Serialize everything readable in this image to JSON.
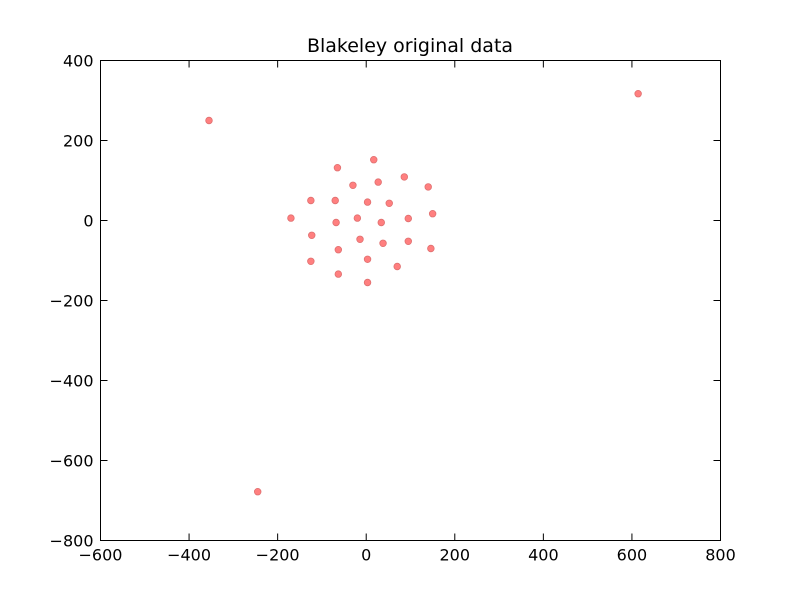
{
  "chart_data": {
    "type": "scatter",
    "title": "Blakeley original data",
    "xlabel": "",
    "ylabel": "",
    "xlim": [
      -600,
      800
    ],
    "ylim": [
      -800,
      400
    ],
    "x_ticks": [
      -600,
      -400,
      -200,
      0,
      200,
      400,
      600,
      800
    ],
    "y_ticks": [
      -800,
      -600,
      -400,
      -200,
      0,
      200,
      400
    ],
    "x_tick_labels": [
      "−600",
      "−400",
      "−200",
      "0",
      "200",
      "400",
      "600",
      "800"
    ],
    "y_tick_labels": [
      "−800",
      "−600",
      "−400",
      "−200",
      "0",
      "200",
      "400"
    ],
    "grid": false,
    "marker_color": "#ff7f7f",
    "marker_edge_color": "#e07070",
    "series": [
      {
        "points": [
          [
            -355,
            250
          ],
          [
            614,
            317
          ],
          [
            -245,
            -678
          ],
          [
            -65,
            132
          ],
          [
            17,
            152
          ],
          [
            -30,
            88
          ],
          [
            27,
            96
          ],
          [
            86,
            109
          ],
          [
            140,
            84
          ],
          [
            -125,
            50
          ],
          [
            -70,
            50
          ],
          [
            3,
            46
          ],
          [
            52,
            43
          ],
          [
            -170,
            6
          ],
          [
            -20,
            6
          ],
          [
            -68,
            -5
          ],
          [
            34,
            -5
          ],
          [
            95,
            5
          ],
          [
            150,
            17
          ],
          [
            -123,
            -37
          ],
          [
            -14,
            -47
          ],
          [
            38,
            -57
          ],
          [
            95,
            -52
          ],
          [
            146,
            -70
          ],
          [
            -63,
            -73
          ],
          [
            -125,
            -102
          ],
          [
            3,
            -97
          ],
          [
            70,
            -115
          ],
          [
            -63,
            -134
          ],
          [
            3,
            -155
          ]
        ]
      }
    ]
  }
}
